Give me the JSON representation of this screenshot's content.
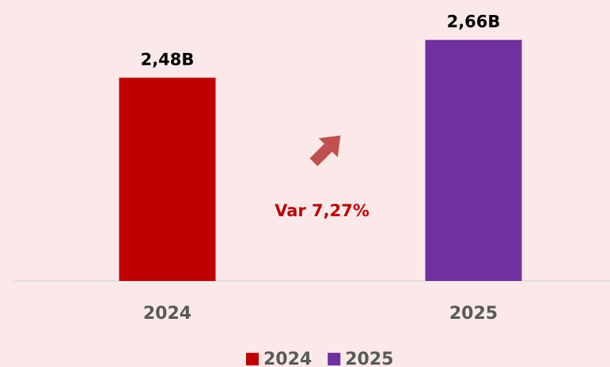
{
  "chart_data": {
    "type": "bar",
    "categories": [
      "2024",
      "2025"
    ],
    "series": [
      {
        "name": "2024",
        "color": "#c00000",
        "values": [
          2.48,
          null
        ],
        "value_labels": [
          "2,48B",
          null
        ]
      },
      {
        "name": "2025",
        "color": "#7030a0",
        "values": [
          null,
          2.66
        ],
        "value_labels": [
          null,
          "2,66B"
        ]
      }
    ],
    "ylim": [
      1.5125,
      2.85
    ],
    "annotation": "Var 7,27%",
    "legend": "bottom"
  }
}
